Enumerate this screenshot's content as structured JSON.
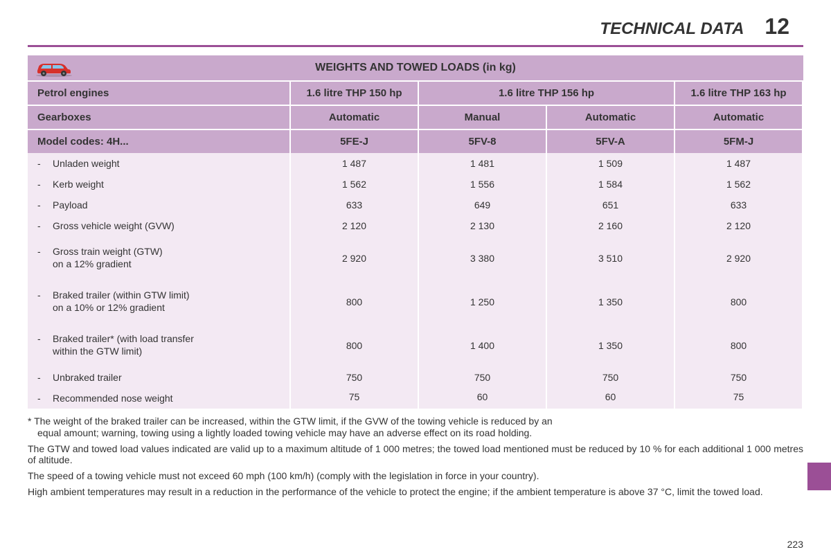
{
  "header": {
    "title": "TECHNICAL DATA",
    "number": "12"
  },
  "colors": {
    "accent": "#9b4f96",
    "header_cell": "#c9a9cc",
    "data_cell": "#f3e9f3",
    "text": "#333333",
    "car_body": "#d6302b",
    "car_window": "#88c4e8"
  },
  "table": {
    "title": "WEIGHTS AND TOWED LOADS (in kg)",
    "row1": {
      "label": "Petrol engines",
      "c1": "1.6 litre THP 150 hp",
      "c23": "1.6 litre THP 156 hp",
      "c4": "1.6 litre THP 163 hp"
    },
    "row2": {
      "label": "Gearboxes",
      "c1": "Automatic",
      "c2": "Manual",
      "c3": "Automatic",
      "c4": "Automatic"
    },
    "row3": {
      "label": "Model codes: 4H...",
      "c1": "5FE-J",
      "c2": "5FV-8",
      "c3": "5FV-A",
      "c4": "5FM-J"
    },
    "rows": [
      {
        "label": "Unladen weight",
        "v": [
          "1 487",
          "1 481",
          "1 509",
          "1 487"
        ]
      },
      {
        "label": "Kerb weight",
        "v": [
          "1 562",
          "1 556",
          "1 584",
          "1 562"
        ]
      },
      {
        "label": "Payload",
        "v": [
          "633",
          "649",
          "651",
          "633"
        ]
      },
      {
        "label": "Gross vehicle weight (GVW)",
        "v": [
          "2 120",
          "2 130",
          "2 160",
          "2 120"
        ]
      },
      {
        "label": "Gross train weight (GTW)\non a 12% gradient",
        "v": [
          "2 920",
          "3 380",
          "3 510",
          "2 920"
        ],
        "multiline": true
      },
      {
        "label": "Braked trailer (within GTW limit)\non a 10% or 12% gradient",
        "v": [
          "800",
          "1 250",
          "1 350",
          "800"
        ],
        "multiline": true
      },
      {
        "label": "Braked trailer* (with load transfer\nwithin the GTW limit)",
        "v": [
          "800",
          "1 400",
          "1 350",
          "800"
        ],
        "multiline": true
      },
      {
        "label": "Unbraked trailer",
        "v": [
          "750",
          "750",
          "750",
          "750"
        ]
      },
      {
        "label": "Recommended nose weight",
        "v": [
          "75",
          "60",
          "60",
          "75"
        ],
        "tight": true
      }
    ]
  },
  "notes": {
    "p1a": "* The weight of the braked trailer can be increased, within the GTW limit, if the GVW of the towing vehicle is reduced by an",
    "p1b": "equal amount; warning, towing using a lightly loaded towing vehicle may have an adverse effect on its road holding.",
    "p2": "The GTW and towed load values indicated are valid up to a maximum altitude of 1 000 metres; the towed load mentioned must be reduced by 10 % for each additional 1 000 metres of altitude.",
    "p3": "The speed of a towing vehicle must not exceed 60 mph (100 km/h) (comply with the legislation in force in your country).",
    "p4": "High ambient temperatures may result in a reduction in the performance of the vehicle to protect the engine; if the ambient temperature is above 37 °C, limit the towed load."
  },
  "page_number": "223"
}
